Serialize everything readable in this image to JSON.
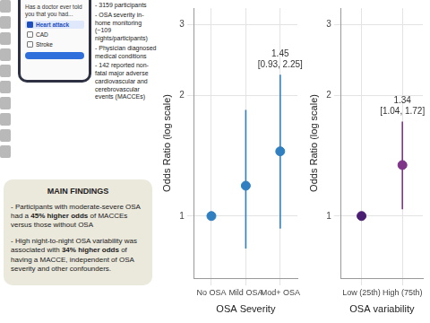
{
  "panel": {
    "phone": {
      "question": "Has a doctor ever told you that you had...",
      "options": [
        {
          "label": "Heart attack",
          "checked": true
        },
        {
          "label": "CAD",
          "checked": false
        },
        {
          "label": "Stroke",
          "checked": false
        }
      ]
    },
    "study_points": [
      "- 3159 participants",
      "- OSA severity in-home monitoring (~109 nights/participants)",
      "- Physician diagnosed medical conditions",
      "- 142 reported non-fatal major adverse cardiovascular and cerebrovascular events (MACCEs)"
    ],
    "findings": {
      "title": "MAIN FINDINGS",
      "items": [
        [
          {
            "text": "- Participants with moderate-severe OSA had a ",
            "bold": false
          },
          {
            "text": "45% higher odds",
            "bold": true
          },
          {
            "text": " of MACCEs versus those without OSA",
            "bold": false
          }
        ],
        [
          {
            "text": "- High night-to-night OSA variability was associated with ",
            "bold": false
          },
          {
            "text": "34% higher odds",
            "bold": true
          },
          {
            "text": " of having a MACCE, independent of OSA severity and other confounders.",
            "bold": false
          }
        ]
      ]
    }
  },
  "chart_data": [
    {
      "type": "point_range",
      "x_label": "OSA Severity",
      "y_label": "Odds Ratio (log scale)",
      "categories": [
        "No OSA",
        "Mild OSA",
        "Mod+ OSA"
      ],
      "values": [
        1,
        1.19,
        1.45
      ],
      "errors": {
        "lower": [
          1,
          0.83,
          0.93
        ],
        "upper": [
          1,
          1.84,
          2.25
        ]
      },
      "colors": [
        "#2f7fc1",
        "#2f7fc1",
        "#2f7fc1"
      ],
      "log": "y",
      "ylim": [
        0.7,
        3.3
      ],
      "yticks": [
        1,
        2,
        3
      ],
      "grid": true,
      "annotations": [
        {
          "category": "Mod+ OSA",
          "lines": [
            "1.45",
            "[0.93, 2.25]"
          ]
        }
      ]
    },
    {
      "type": "point_range",
      "x_label": "OSA variability",
      "y_label": "Odds Ratio (log scale)",
      "categories": [
        "Low (25th)",
        "High (75th)"
      ],
      "values": [
        1,
        1.34
      ],
      "errors": {
        "lower": [
          1,
          1.04
        ],
        "upper": [
          1,
          1.72
        ]
      },
      "colors": [
        "#4a1f73",
        "#7e3587"
      ],
      "log": "y",
      "ylim": [
        0.7,
        3.3
      ],
      "yticks": [
        1,
        2,
        3
      ],
      "grid": true,
      "annotations": [
        {
          "category": "High (75th)",
          "lines": [
            "1.34",
            "[1.04, 1.72]"
          ]
        }
      ]
    }
  ]
}
